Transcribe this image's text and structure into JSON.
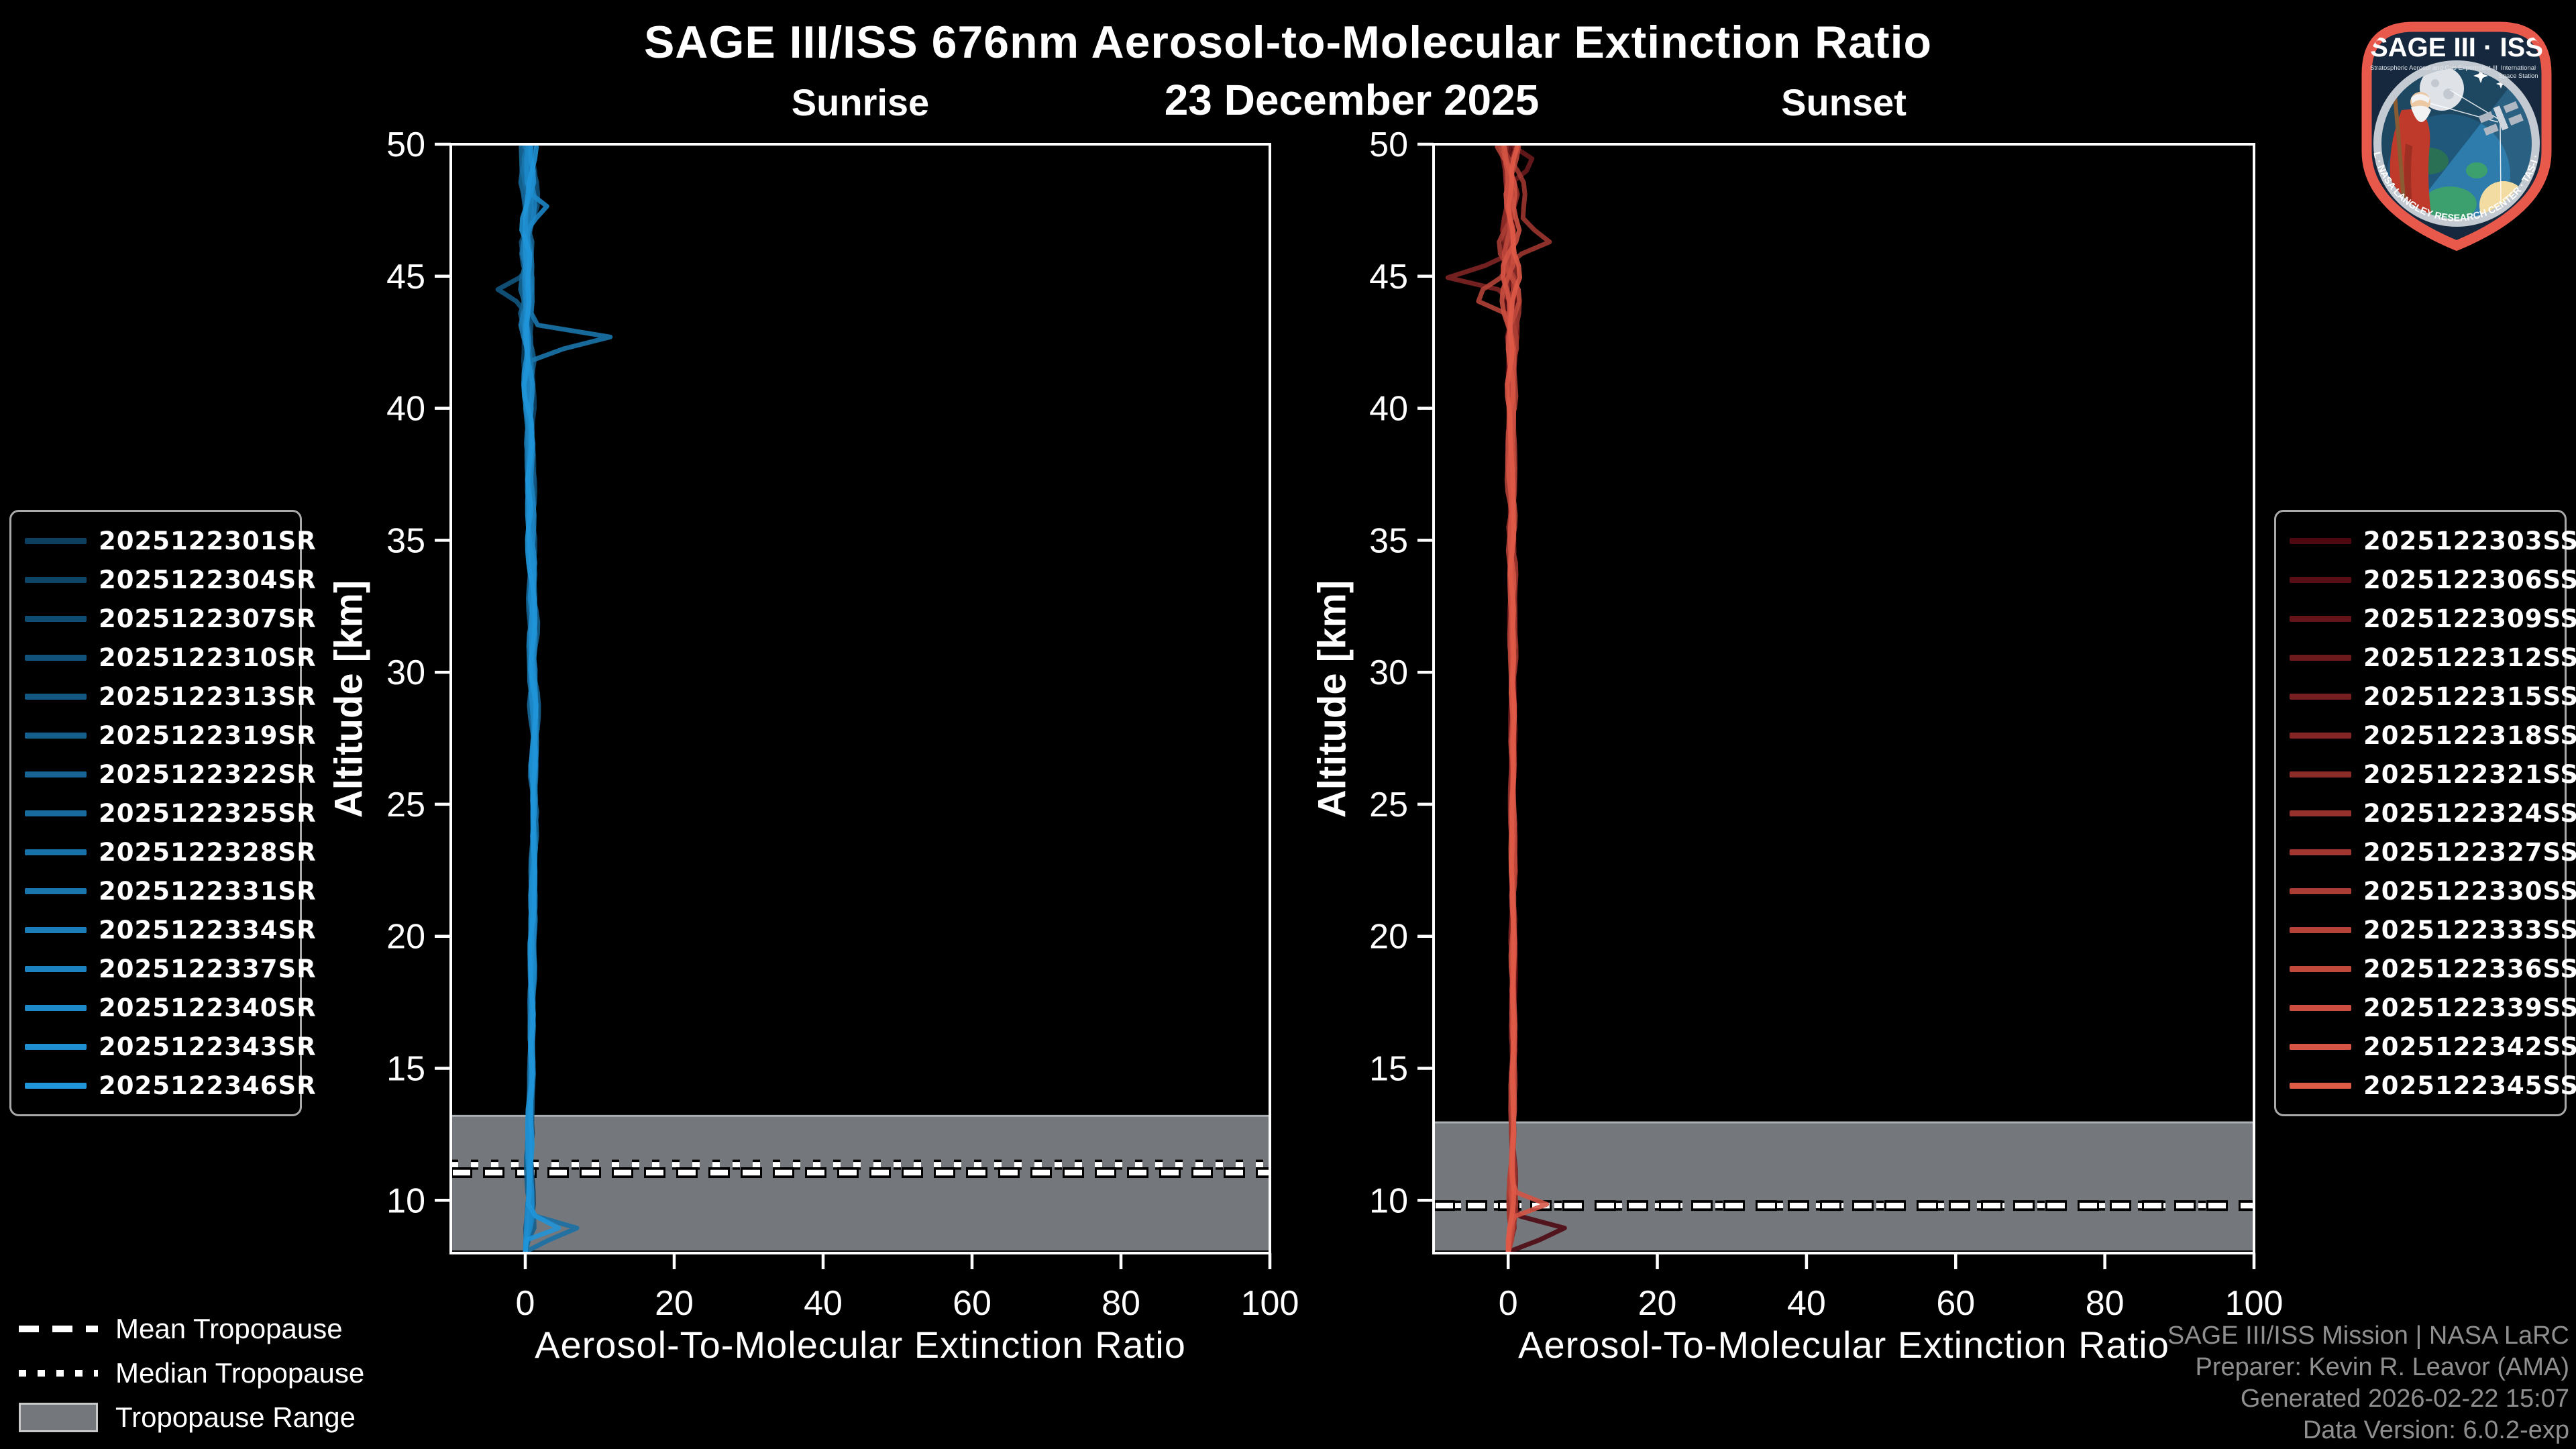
{
  "figure": {
    "title": "SAGE III/ISS 676nm Aerosol-to-Molecular Extinction Ratio",
    "date": "23 December 2025",
    "background": "#000000"
  },
  "attribution": {
    "color": "#8f8f8f",
    "lines": [
      "SAGE III/ISS Mission | NASA LaRC",
      "Preparer: Kevin R. Leavor (AMA)",
      "Generated 2026-02-22 15:07",
      "Data Version: 6.0.2-exp"
    ]
  },
  "tropopause_legend": [
    {
      "style": "dashed",
      "label": "Mean Tropopause"
    },
    {
      "style": "dotted",
      "label": "Median Tropopause"
    },
    {
      "style": "band",
      "label": "Tropopause Range"
    }
  ],
  "logo": {
    "title": "SAGE III · ISS",
    "subtitle_left": "Stratospheric Aerosol and Gas Experiment III",
    "subtitle_right_1": "International",
    "subtitle_right_2": "Space Station",
    "arc_text": "BALL · NASA LANGLEY RESEARCH CENTER · TAS-I · ESA",
    "border_color": "#e8594b"
  },
  "chart_data": {
    "type": "line",
    "grid": false,
    "band_color": "#74777b",
    "band_edge_color": "#a9aeb2",
    "panels": [
      {
        "id": "sunrise",
        "title": "Sunrise",
        "xlabel": "Aerosol-To-Molecular Extinction Ratio",
        "ylabel": "Altitude [km]",
        "xlim": [
          -10,
          100
        ],
        "ylim": [
          8,
          50
        ],
        "xticks": [
          0,
          20,
          40,
          60,
          80,
          100
        ],
        "yticks": [
          50,
          45,
          40,
          35,
          30,
          25,
          20,
          15,
          10
        ],
        "tropopause": {
          "mean_km": 11.05,
          "median_km": 11.35,
          "range_km": [
            8.1,
            13.2
          ]
        },
        "series": [
          {
            "name": "2025122301SR",
            "color": "#0d4060"
          },
          {
            "name": "2025122304SR",
            "color": "#0e4669"
          },
          {
            "name": "2025122307SR",
            "color": "#104c71"
          },
          {
            "name": "2025122310SR",
            "color": "#11527a"
          },
          {
            "name": "2025122313SR",
            "color": "#125883"
          },
          {
            "name": "2025122319SR",
            "color": "#145e8c"
          },
          {
            "name": "2025122322SR",
            "color": "#156494"
          },
          {
            "name": "2025122325SR",
            "color": "#176b9d"
          },
          {
            "name": "2025122328SR",
            "color": "#1871a6"
          },
          {
            "name": "2025122331SR",
            "color": "#1977ae"
          },
          {
            "name": "2025122334SR",
            "color": "#1b7db7"
          },
          {
            "name": "2025122337SR",
            "color": "#1c83c0"
          },
          {
            "name": "2025122340SR",
            "color": "#1d89c9"
          },
          {
            "name": "2025122343SR",
            "color": "#1f8fd1"
          },
          {
            "name": "2025122346SR",
            "color": "#2095da"
          }
        ],
        "profile": {
          "center_keypoints": [
            [
              8,
              0.2
            ],
            [
              9,
              0.5
            ],
            [
              12,
              0.6
            ],
            [
              20,
              1.0
            ],
            [
              28,
              1.2
            ],
            [
              35,
              0.9
            ],
            [
              42,
              0.4
            ],
            [
              50,
              0.2
            ]
          ],
          "spread_keypoints": [
            [
              8,
              0.5
            ],
            [
              9.2,
              1.2
            ],
            [
              10.5,
              0.8
            ],
            [
              13,
              0.55
            ],
            [
              20,
              0.6
            ],
            [
              30,
              0.85
            ],
            [
              38,
              0.95
            ],
            [
              41,
              1.3
            ],
            [
              43,
              1.9
            ],
            [
              45,
              1.7
            ],
            [
              47,
              1.8
            ],
            [
              50,
              2.1
            ]
          ],
          "spikes": [
            {
              "series": 8,
              "alt_km": 8.8,
              "value": 7.5,
              "width_km": 0.45
            },
            {
              "series": 14,
              "alt_km": 9.05,
              "value": 5.0,
              "width_km": 0.3
            },
            {
              "series": 9,
              "alt_km": 42.6,
              "value": 11.5,
              "width_km": 0.35
            },
            {
              "series": 4,
              "alt_km": 44.5,
              "value": -3.5,
              "width_km": 0.4
            },
            {
              "series": 12,
              "alt_km": 47.6,
              "value": 3.0,
              "width_km": 0.45
            }
          ]
        }
      },
      {
        "id": "sunset",
        "title": "Sunset",
        "xlabel": "Aerosol-To-Molecular Extinction Ratio",
        "ylabel": "Altitude [km]",
        "xlim": [
          -10,
          100
        ],
        "ylim": [
          8,
          50
        ],
        "xticks": [
          0,
          20,
          40,
          60,
          80,
          100
        ],
        "yticks": [
          50,
          45,
          40,
          35,
          30,
          25,
          20,
          15,
          10
        ],
        "tropopause": {
          "mean_km": 9.8,
          "median_km": 9.8,
          "range_km": [
            8.1,
            12.95
          ]
        },
        "series": [
          {
            "name": "2025122303SS",
            "color": "#4d0810"
          },
          {
            "name": "2025122306SS",
            "color": "#580e14"
          },
          {
            "name": "2025122309SS",
            "color": "#621418"
          },
          {
            "name": "2025122312SS",
            "color": "#6d1a1c"
          },
          {
            "name": "2025122315SS",
            "color": "#771f20"
          },
          {
            "name": "2025122318SS",
            "color": "#822524"
          },
          {
            "name": "2025122321SS",
            "color": "#8c2b28"
          },
          {
            "name": "2025122324SS",
            "color": "#97312c"
          },
          {
            "name": "2025122327SS",
            "color": "#a13730"
          },
          {
            "name": "2025122330SS",
            "color": "#ab3d34"
          },
          {
            "name": "2025122333SS",
            "color": "#b64338"
          },
          {
            "name": "2025122336SS",
            "color": "#c0493c"
          },
          {
            "name": "2025122339SS",
            "color": "#cb4e40"
          },
          {
            "name": "2025122342SS",
            "color": "#d55444"
          },
          {
            "name": "2025122345SS",
            "color": "#e05a48"
          }
        ],
        "profile": {
          "center_keypoints": [
            [
              8,
              0.3
            ],
            [
              10,
              0.6
            ],
            [
              20,
              0.7
            ],
            [
              30,
              0.6
            ],
            [
              40,
              0.4
            ],
            [
              47,
              0.3
            ],
            [
              50,
              0.2
            ]
          ],
          "spread_keypoints": [
            [
              8,
              0.7
            ],
            [
              9.5,
              1.1
            ],
            [
              12,
              0.55
            ],
            [
              20,
              0.55
            ],
            [
              30,
              0.7
            ],
            [
              38,
              0.85
            ],
            [
              42,
              1.2
            ],
            [
              44,
              2.2
            ],
            [
              45,
              3.2
            ],
            [
              46,
              2.6
            ],
            [
              47.5,
              2.2
            ],
            [
              50,
              2.4
            ]
          ],
          "spikes": [
            {
              "series": 0,
              "alt_km": 8.75,
              "value": 9.0,
              "width_km": 0.45
            },
            {
              "series": 13,
              "alt_km": 9.85,
              "value": 4.5,
              "width_km": 0.3
            },
            {
              "series": 5,
              "alt_km": 45.0,
              "value": -8.5,
              "width_km": 0.4
            },
            {
              "series": 8,
              "alt_km": 46.3,
              "value": 5.5,
              "width_km": 0.5
            },
            {
              "series": 10,
              "alt_km": 44.2,
              "value": -4.0,
              "width_km": 0.4
            },
            {
              "series": 3,
              "alt_km": 49.3,
              "value": 3.5,
              "width_km": 0.5
            }
          ]
        }
      }
    ]
  }
}
